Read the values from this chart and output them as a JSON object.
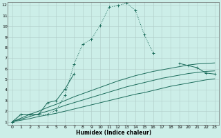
{
  "xlabel": "Humidex (Indice chaleur)",
  "bg_color": "#cceee8",
  "grid_color": "#b0ccc8",
  "line_color": "#1a6b5a",
  "xlim": [
    -0.5,
    23.5
  ],
  "ylim": [
    0.7,
    12.3
  ],
  "xticks": [
    0,
    1,
    2,
    3,
    4,
    5,
    6,
    7,
    8,
    9,
    10,
    11,
    12,
    13,
    14,
    15,
    16,
    17,
    18,
    19,
    20,
    21,
    22,
    23
  ],
  "yticks": [
    1,
    2,
    3,
    4,
    5,
    6,
    7,
    8,
    9,
    10,
    11,
    12
  ],
  "series": [
    {
      "x": [
        0,
        1,
        2,
        3,
        4,
        5,
        6,
        7,
        8,
        9,
        10,
        11,
        12,
        13,
        14,
        15,
        16,
        17
      ],
      "y": [
        1.0,
        1.7,
        1.7,
        1.7,
        1.7,
        2.1,
        3.5,
        6.4,
        8.3,
        8.8,
        10.1,
        11.8,
        11.95,
        12.2,
        11.5,
        9.2,
        7.5,
        null
      ],
      "linestyle": "dotted",
      "marker": "+"
    },
    {
      "x": [
        0,
        1,
        2,
        3,
        4,
        5,
        6,
        7,
        8,
        18,
        19,
        20,
        21,
        22,
        23
      ],
      "y": [
        1.0,
        1.7,
        1.7,
        1.7,
        2.8,
        3.0,
        4.1,
        5.5,
        null,
        null,
        6.5,
        6.3,
        6.1,
        5.6,
        5.5
      ],
      "linestyle": "solid",
      "marker": "+"
    },
    {
      "x": [
        0,
        1,
        2,
        3,
        4,
        5,
        6,
        7,
        8,
        9,
        10,
        11,
        12,
        13,
        14,
        15,
        16,
        17,
        18,
        19,
        20,
        21,
        22,
        23
      ],
      "y": [
        1.0,
        1.35,
        1.7,
        2.0,
        2.35,
        2.65,
        3.0,
        3.35,
        3.65,
        3.95,
        4.25,
        4.55,
        4.85,
        5.1,
        5.35,
        5.55,
        5.75,
        5.9,
        6.05,
        6.2,
        6.35,
        6.45,
        6.5,
        6.55
      ],
      "linestyle": "solid",
      "marker": null
    },
    {
      "x": [
        0,
        1,
        2,
        3,
        4,
        5,
        6,
        7,
        8,
        9,
        10,
        11,
        12,
        13,
        14,
        15,
        16,
        17,
        18,
        19,
        20,
        21,
        22,
        23
      ],
      "y": [
        1.0,
        1.25,
        1.5,
        1.75,
        2.0,
        2.25,
        2.55,
        2.8,
        3.05,
        3.3,
        3.55,
        3.8,
        4.05,
        4.3,
        4.5,
        4.7,
        4.9,
        5.1,
        5.25,
        5.4,
        5.55,
        5.65,
        5.75,
        5.8
      ],
      "linestyle": "solid",
      "marker": null
    },
    {
      "x": [
        0,
        1,
        2,
        3,
        4,
        5,
        6,
        7,
        8,
        9,
        10,
        11,
        12,
        13,
        14,
        15,
        16,
        17,
        18,
        19,
        20,
        21,
        22,
        23
      ],
      "y": [
        1.0,
        1.15,
        1.3,
        1.5,
        1.65,
        1.8,
        2.0,
        2.2,
        2.4,
        2.6,
        2.8,
        3.0,
        3.2,
        3.4,
        3.6,
        3.75,
        3.95,
        4.15,
        4.35,
        4.5,
        4.65,
        4.8,
        4.95,
        5.05
      ],
      "linestyle": "solid",
      "marker": null
    }
  ]
}
